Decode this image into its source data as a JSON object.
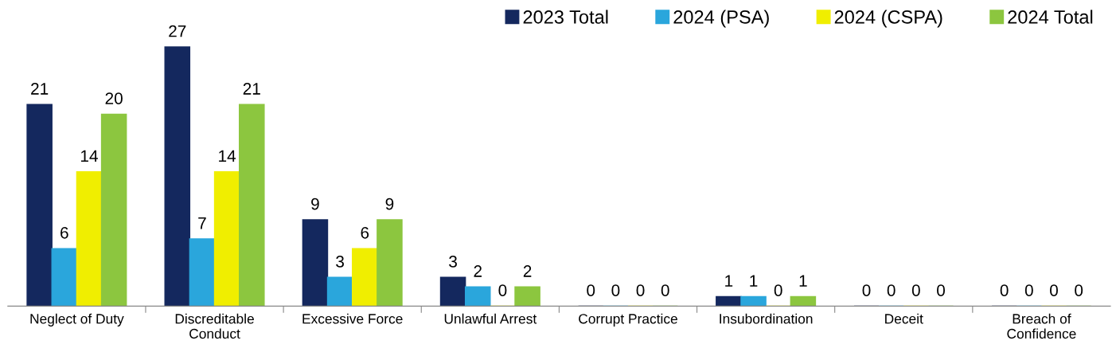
{
  "chart_data": {
    "type": "bar",
    "categories": [
      "Neglect of Duty",
      "Discreditable\nConduct",
      "Excessive Force",
      "Unlawful Arrest",
      "Corrupt Practice",
      "Insubordination",
      "Deceit",
      "Breach of\nConfidence"
    ],
    "series": [
      {
        "name": "2023 Total",
        "color": "#14285e",
        "values": [
          21,
          27,
          9,
          3,
          0,
          1,
          0,
          0
        ]
      },
      {
        "name": "2024 (PSA)",
        "color": "#2aa6dc",
        "values": [
          6,
          7,
          3,
          2,
          0,
          1,
          0,
          0
        ]
      },
      {
        "name": "2024 (CSPA)",
        "color": "#f0ee00",
        "values": [
          14,
          14,
          6,
          0,
          0,
          0,
          0,
          0
        ]
      },
      {
        "name": "2024 Total",
        "color": "#8cc63f",
        "values": [
          20,
          21,
          9,
          2,
          0,
          1,
          0,
          0
        ]
      }
    ],
    "data_labels": true,
    "legend": "top right",
    "grid": false
  }
}
